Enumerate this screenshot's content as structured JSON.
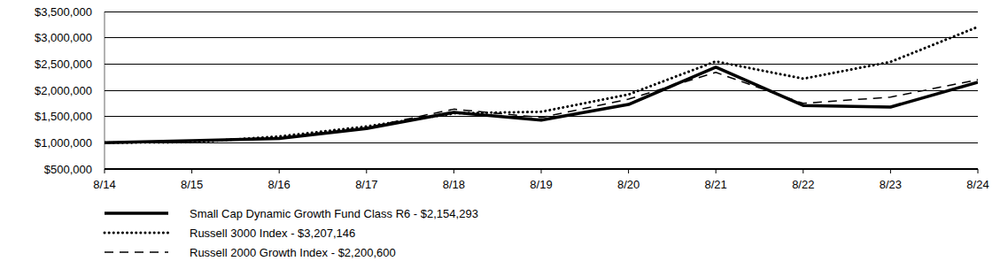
{
  "chart_data": {
    "type": "line",
    "categories": [
      "8/14",
      "8/15",
      "8/16",
      "8/17",
      "8/18",
      "8/19",
      "8/20",
      "8/21",
      "8/22",
      "8/23",
      "8/24"
    ],
    "series": [
      {
        "name": "Small Cap Dynamic Growth Fund Class R6 - $2,154,293",
        "color": "#000000",
        "line_style": "solid",
        "values": [
          1000000,
          1040000,
          1080000,
          1270000,
          1580000,
          1430000,
          1730000,
          2440000,
          1710000,
          1680000,
          2154293
        ]
      },
      {
        "name": "Russell 3000 Index - $3,207,146",
        "color": "#000000",
        "line_style": "dotted",
        "values": [
          1000000,
          1010000,
          1120000,
          1310000,
          1560000,
          1590000,
          1920000,
          2550000,
          2220000,
          2540000,
          3207146
        ]
      },
      {
        "name": "Russell 2000 Growth Index - $2,200,600",
        "color": "#000000",
        "line_style": "dashed",
        "values": [
          1000000,
          1030000,
          1100000,
          1290000,
          1640000,
          1480000,
          1830000,
          2340000,
          1750000,
          1870000,
          2200600
        ]
      }
    ],
    "ylim": [
      500000,
      3500000
    ],
    "yticks": [
      {
        "value": 500000,
        "label": "$500,000"
      },
      {
        "value": 1000000,
        "label": "$1,000,000"
      },
      {
        "value": 1500000,
        "label": "$1,500,000"
      },
      {
        "value": 2000000,
        "label": "$2,000,000"
      },
      {
        "value": 2500000,
        "label": "$2,500,000"
      },
      {
        "value": 3000000,
        "label": "$3,000,000"
      },
      {
        "value": 3500000,
        "label": "$3,500,000"
      }
    ],
    "grid": true,
    "legend": "bottom"
  }
}
